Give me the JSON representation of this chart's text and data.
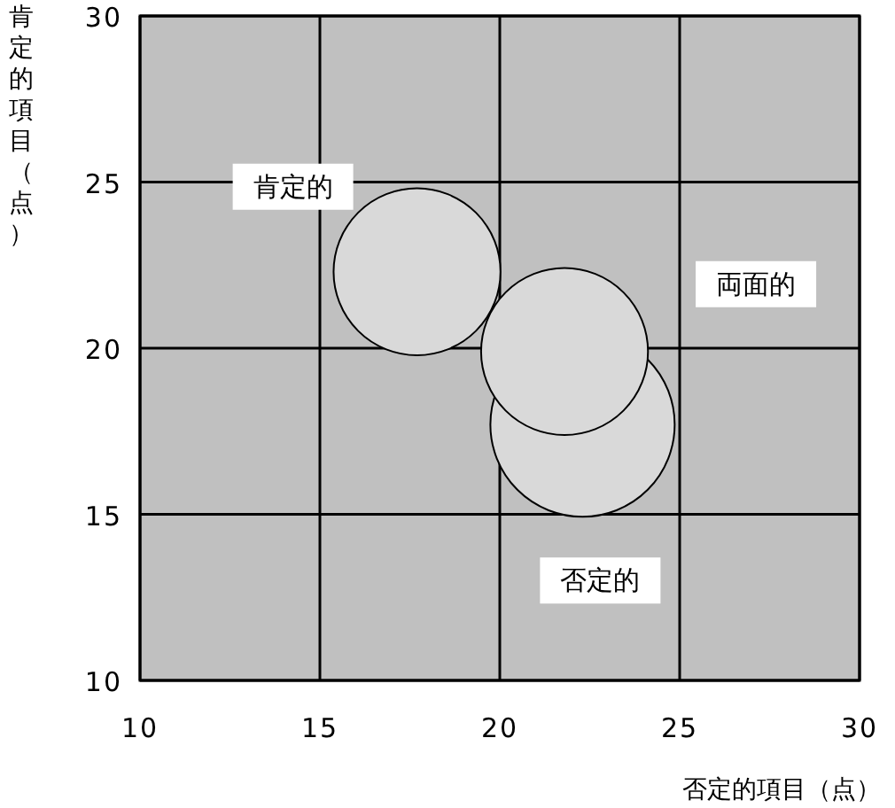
{
  "chart_data": {
    "type": "bubble",
    "xlabel": "否定的項目（点）",
    "ylabel": "肯定的項目（点）",
    "xlim": [
      10,
      30
    ],
    "ylim": [
      10,
      30
    ],
    "xticks": [
      10,
      15,
      20,
      25,
      30
    ],
    "yticks": [
      10,
      15,
      20,
      25,
      30
    ],
    "grid": true,
    "series": [
      {
        "name": "肯定的",
        "color": "#d9d9d9",
        "x": [
          17.7
        ],
        "values": [
          22.3
        ],
        "sizes": [
          0.82
        ]
      },
      {
        "name": "否定的",
        "color": "#d9d9d9",
        "x": [
          22.3
        ],
        "values": [
          17.7
        ],
        "sizes": [
          1
        ]
      },
      {
        "name": "両面的",
        "color": "#d9d9d9",
        "x": [
          21.8
        ],
        "values": [
          19.9
        ],
        "sizes": [
          0.82
        ]
      }
    ]
  }
}
